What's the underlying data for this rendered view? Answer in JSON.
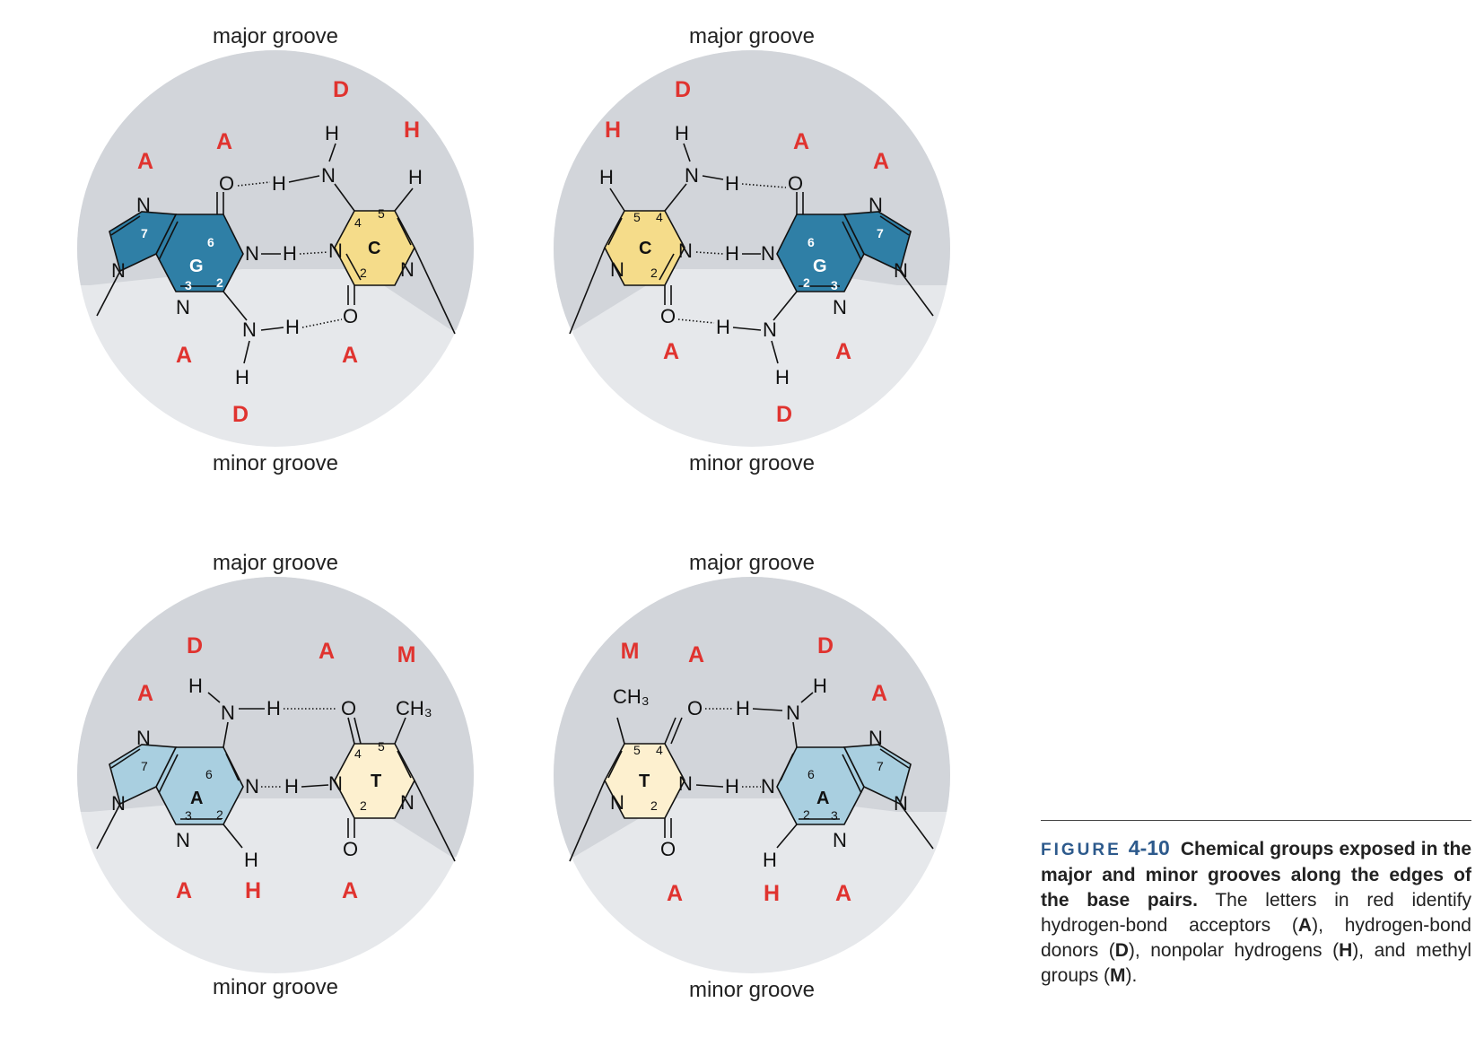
{
  "panels": [
    {
      "id": "gc",
      "major_label": "major groove",
      "minor_label": "minor groove",
      "major_codes": [
        "A",
        "A",
        "D",
        "H"
      ],
      "minor_codes": [
        "A",
        "D",
        "A"
      ],
      "purine": {
        "letter": "G",
        "color": "#2f7fa6"
      },
      "pyrimidine": {
        "letter": "C",
        "color": "#f5dc8a"
      }
    },
    {
      "id": "cg",
      "major_label": "major groove",
      "minor_label": "minor groove",
      "major_codes": [
        "H",
        "D",
        "A",
        "A"
      ],
      "minor_codes": [
        "A",
        "D",
        "A"
      ],
      "purine": {
        "letter": "G",
        "color": "#2f7fa6"
      },
      "pyrimidine": {
        "letter": "C",
        "color": "#f5dc8a"
      }
    },
    {
      "id": "at",
      "major_label": "major groove",
      "minor_label": "minor groove",
      "major_codes": [
        "A",
        "D",
        "A",
        "M"
      ],
      "minor_codes": [
        "A",
        "H",
        "A"
      ],
      "purine": {
        "letter": "A",
        "color": "#a9cfe0"
      },
      "pyrimidine": {
        "letter": "T",
        "color": "#fdf0cf"
      }
    },
    {
      "id": "ta",
      "major_label": "major groove",
      "minor_label": "minor groove",
      "major_codes": [
        "M",
        "A",
        "D",
        "A"
      ],
      "minor_codes": [
        "A",
        "H",
        "A"
      ],
      "purine": {
        "letter": "A",
        "color": "#a9cfe0"
      },
      "pyrimidine": {
        "letter": "T",
        "color": "#fdf0cf"
      }
    }
  ],
  "colors": {
    "circle_top": "#d2d5da",
    "circle_bottom": "#e6e8eb",
    "code": "#e0332f"
  },
  "caption": {
    "figure_word": "FIGURE",
    "figure_number": "4-10",
    "title": "Chemical groups exposed in the major and minor grooves along the edges of the base pairs.",
    "text_1": " The letters in red identify hydrogen-bond acceptors (",
    "acceptor": "A",
    "text_2": "), hydrogen-bond donors (",
    "donor": "D",
    "text_3": "), nonpolar hydrogens (",
    "nonpolar": "H",
    "text_4": "), and methyl groups (",
    "methyl": "M",
    "text_5": ")."
  }
}
